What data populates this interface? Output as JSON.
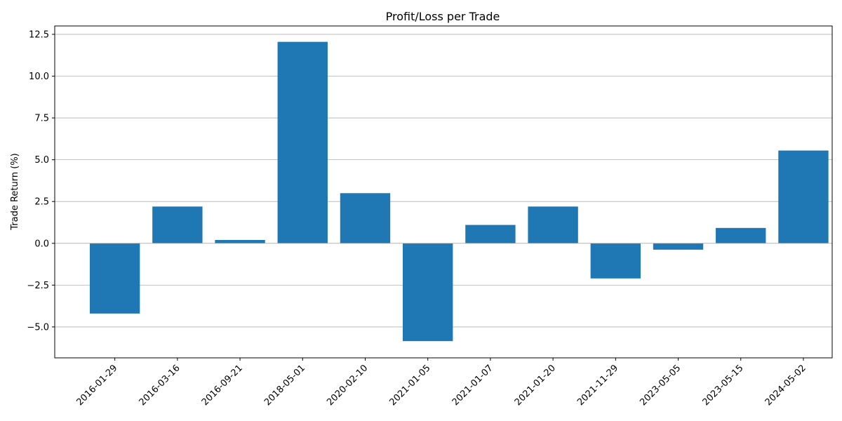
{
  "chart_data": {
    "type": "bar",
    "title": "Profit/Loss per Trade",
    "xlabel": "",
    "ylabel": "Trade Return (%)",
    "categories": [
      "2016-01-29",
      "2016-03-16",
      "2016-09-21",
      "2018-05-01",
      "2020-02-10",
      "2021-01-05",
      "2021-01-07",
      "2021-01-20",
      "2021-11-29",
      "2023-05-05",
      "2023-05-15",
      "2024-05-02"
    ],
    "values": [
      -4.2,
      2.2,
      0.2,
      12.05,
      3.0,
      -5.85,
      1.1,
      2.2,
      -2.1,
      -0.38,
      0.92,
      5.55
    ],
    "ylim": [
      -6.85,
      13.0
    ],
    "yticks": [
      -5.0,
      -2.5,
      0.0,
      2.5,
      5.0,
      7.5,
      10.0,
      12.5
    ],
    "ytick_labels": [
      "−5.0",
      "−2.5",
      "0.0",
      "2.5",
      "5.0",
      "7.5",
      "10.0",
      "12.5"
    ],
    "grid": "y-axis",
    "bar_color": "#1f77b4"
  }
}
